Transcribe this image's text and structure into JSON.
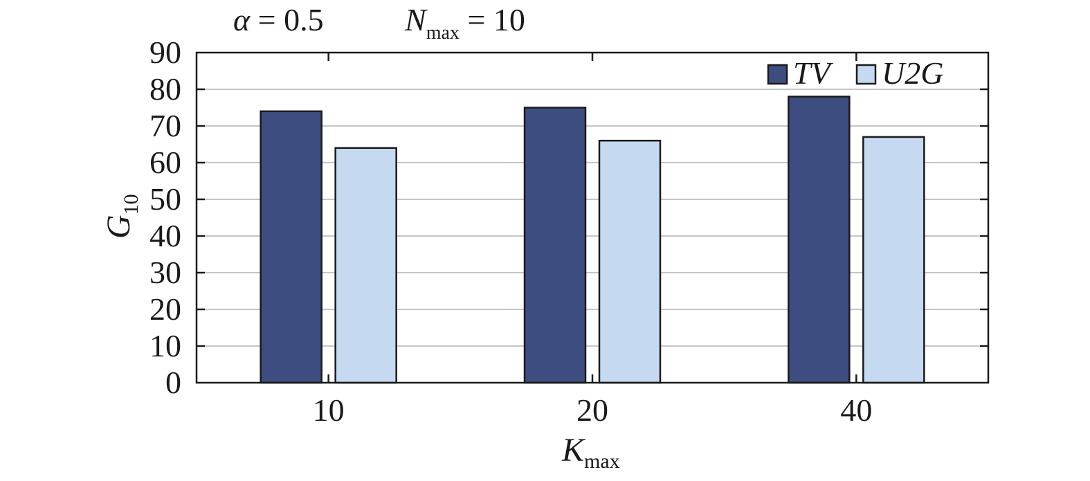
{
  "chart_data": {
    "type": "bar",
    "title": {
      "alpha_symbol": "α",
      "alpha_eq": " = 0.5",
      "n_symbol": "N",
      "n_sub": "max",
      "n_eq": " = 10"
    },
    "xlabel": {
      "main": "K",
      "sub": "max"
    },
    "ylabel": {
      "main": "G",
      "sub": "10"
    },
    "categories": [
      "10",
      "20",
      "40"
    ],
    "series": [
      {
        "name": "TV",
        "values": [
          74,
          75,
          78
        ],
        "color": "#3d4d80"
      },
      {
        "name": "U2G",
        "values": [
          64,
          66,
          67
        ],
        "color": "#c5d9f1"
      }
    ],
    "ylim": [
      0,
      90
    ],
    "yticks": [
      "0",
      "10",
      "20",
      "30",
      "40",
      "50",
      "60",
      "70",
      "80",
      "90"
    ],
    "grid": true,
    "legend_position": "top-right"
  }
}
